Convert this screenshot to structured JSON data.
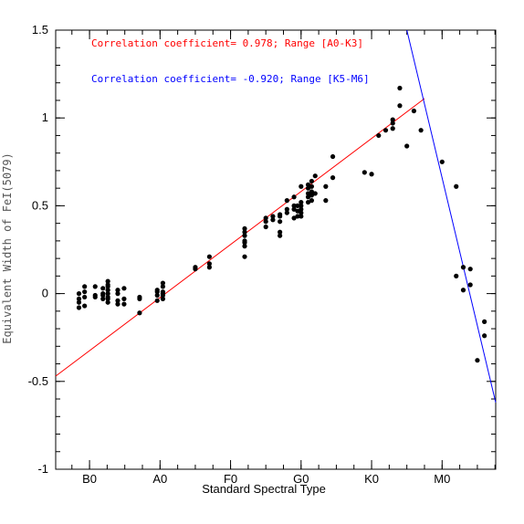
{
  "chart_data": {
    "type": "scatter",
    "title": "",
    "xlabel": "Standard Spectral Type",
    "ylabel": "Equivalent Width of FeI(5079)",
    "x_unit_note": "spectral subclass index: B0=0, A0=10, F0=20, G0=30, K0=40, M0=50",
    "xlim": [
      -4.8,
      57.6
    ],
    "ylim": [
      -1,
      1.5
    ],
    "x_ticks": [
      {
        "value": 0,
        "label": "B0"
      },
      {
        "value": 10,
        "label": "A0"
      },
      {
        "value": 20,
        "label": "F0"
      },
      {
        "value": 30,
        "label": "G0"
      },
      {
        "value": 40,
        "label": "K0"
      },
      {
        "value": 50,
        "label": "M0"
      }
    ],
    "y_ticks": [
      {
        "value": -1,
        "label": "-1"
      },
      {
        "value": -0.5,
        "label": "-0.5"
      },
      {
        "value": 0,
        "label": "0"
      },
      {
        "value": 0.5,
        "label": "0.5"
      },
      {
        "value": 1,
        "label": "1"
      },
      {
        "value": 1.5,
        "label": "1.5"
      }
    ],
    "y_minor_step": 0.1,
    "x_minor_step": 2.5,
    "grid": false,
    "points_color": "#000000",
    "points": [
      [
        -1.5,
        -0.08
      ],
      [
        -1.5,
        -0.05
      ],
      [
        -1.5,
        0.0
      ],
      [
        -1.5,
        -0.03
      ],
      [
        -0.7,
        -0.07
      ],
      [
        -0.7,
        -0.02
      ],
      [
        -0.7,
        0.01
      ],
      [
        -0.7,
        0.04
      ],
      [
        0.8,
        -0.01
      ],
      [
        0.8,
        0.04
      ],
      [
        0.8,
        -0.02
      ],
      [
        1.9,
        -0.03
      ],
      [
        1.9,
        -0.01
      ],
      [
        1.9,
        0.0
      ],
      [
        1.9,
        0.03
      ],
      [
        2.6,
        -0.05
      ],
      [
        2.6,
        -0.02
      ],
      [
        2.6,
        0.0
      ],
      [
        2.6,
        0.02
      ],
      [
        2.6,
        0.04
      ],
      [
        2.6,
        0.07
      ],
      [
        2.6,
        -0.03
      ],
      [
        2.6,
        0.05
      ],
      [
        4.0,
        -0.06
      ],
      [
        4.0,
        -0.04
      ],
      [
        4.0,
        0.0
      ],
      [
        4.0,
        0.02
      ],
      [
        4.9,
        -0.06
      ],
      [
        4.9,
        -0.03
      ],
      [
        4.9,
        0.03
      ],
      [
        7.1,
        -0.11
      ],
      [
        7.1,
        -0.03
      ],
      [
        7.1,
        -0.02
      ],
      [
        9.6,
        -0.04
      ],
      [
        9.6,
        -0.01
      ],
      [
        9.6,
        0.01
      ],
      [
        9.6,
        0.02
      ],
      [
        10.4,
        -0.03
      ],
      [
        10.4,
        0.0
      ],
      [
        10.4,
        0.01
      ],
      [
        10.4,
        0.04
      ],
      [
        10.4,
        0.06
      ],
      [
        10.4,
        -0.01
      ],
      [
        15.0,
        0.14
      ],
      [
        15.0,
        0.15
      ],
      [
        17.0,
        0.15
      ],
      [
        17.0,
        0.17
      ],
      [
        17.0,
        0.21
      ],
      [
        22.0,
        0.21
      ],
      [
        22.0,
        0.27
      ],
      [
        22.0,
        0.29
      ],
      [
        22.0,
        0.3
      ],
      [
        22.0,
        0.33
      ],
      [
        22.0,
        0.35
      ],
      [
        22.0,
        0.37
      ],
      [
        25.0,
        0.38
      ],
      [
        25.0,
        0.41
      ],
      [
        25.0,
        0.43
      ],
      [
        26.0,
        0.42
      ],
      [
        26.0,
        0.44
      ],
      [
        27.0,
        0.33
      ],
      [
        27.0,
        0.35
      ],
      [
        27.0,
        0.41
      ],
      [
        27.0,
        0.44
      ],
      [
        27.0,
        0.45
      ],
      [
        28.0,
        0.46
      ],
      [
        28.0,
        0.48
      ],
      [
        28.0,
        0.53
      ],
      [
        29.0,
        0.43
      ],
      [
        29.0,
        0.48
      ],
      [
        29.0,
        0.5
      ],
      [
        29.0,
        0.55
      ],
      [
        29.5,
        0.44
      ],
      [
        29.5,
        0.47
      ],
      [
        29.5,
        0.5
      ],
      [
        30.0,
        0.44
      ],
      [
        30.0,
        0.46
      ],
      [
        30.0,
        0.48
      ],
      [
        30.0,
        0.5
      ],
      [
        30.0,
        0.52
      ],
      [
        30.0,
        0.61
      ],
      [
        31.0,
        0.52
      ],
      [
        31.0,
        0.55
      ],
      [
        31.0,
        0.57
      ],
      [
        31.0,
        0.6
      ],
      [
        31.0,
        0.62
      ],
      [
        31.5,
        0.53
      ],
      [
        31.5,
        0.56
      ],
      [
        31.5,
        0.58
      ],
      [
        31.5,
        0.61
      ],
      [
        31.5,
        0.64
      ],
      [
        32.0,
        0.57
      ],
      [
        32.0,
        0.67
      ],
      [
        33.5,
        0.61
      ],
      [
        33.5,
        0.53
      ],
      [
        34.5,
        0.78
      ],
      [
        34.5,
        0.66
      ],
      [
        39.0,
        0.69
      ],
      [
        40.0,
        0.68
      ],
      [
        41.0,
        0.9
      ],
      [
        42.0,
        0.93
      ],
      [
        43.0,
        0.94
      ],
      [
        43.0,
        0.97
      ],
      [
        43.0,
        0.99
      ],
      [
        44.0,
        1.07
      ],
      [
        44.0,
        1.17
      ],
      [
        45.0,
        0.84
      ],
      [
        46.0,
        1.04
      ],
      [
        47.0,
        0.93
      ],
      [
        50.0,
        0.75
      ],
      [
        52.0,
        0.61
      ],
      [
        52.0,
        0.1
      ],
      [
        53.0,
        0.15
      ],
      [
        53.0,
        0.02
      ],
      [
        54.0,
        0.14
      ],
      [
        54.0,
        0.05
      ],
      [
        55.0,
        -0.38
      ],
      [
        56.0,
        -0.16
      ],
      [
        56.0,
        -0.24
      ]
    ],
    "fits": [
      {
        "name": "Correlation coefficient= 0.978; Range [A0-K3]",
        "color": "#ff0000",
        "x": [
          -4.8,
          47.5
        ],
        "y": [
          -0.47,
          1.11
        ]
      },
      {
        "name": "Correlation coefficient= -0.920; Range [K5-M6]",
        "color": "#0000ff",
        "x": [
          45.0,
          57.6
        ],
        "y": [
          1.5,
          -0.62
        ]
      }
    ]
  }
}
